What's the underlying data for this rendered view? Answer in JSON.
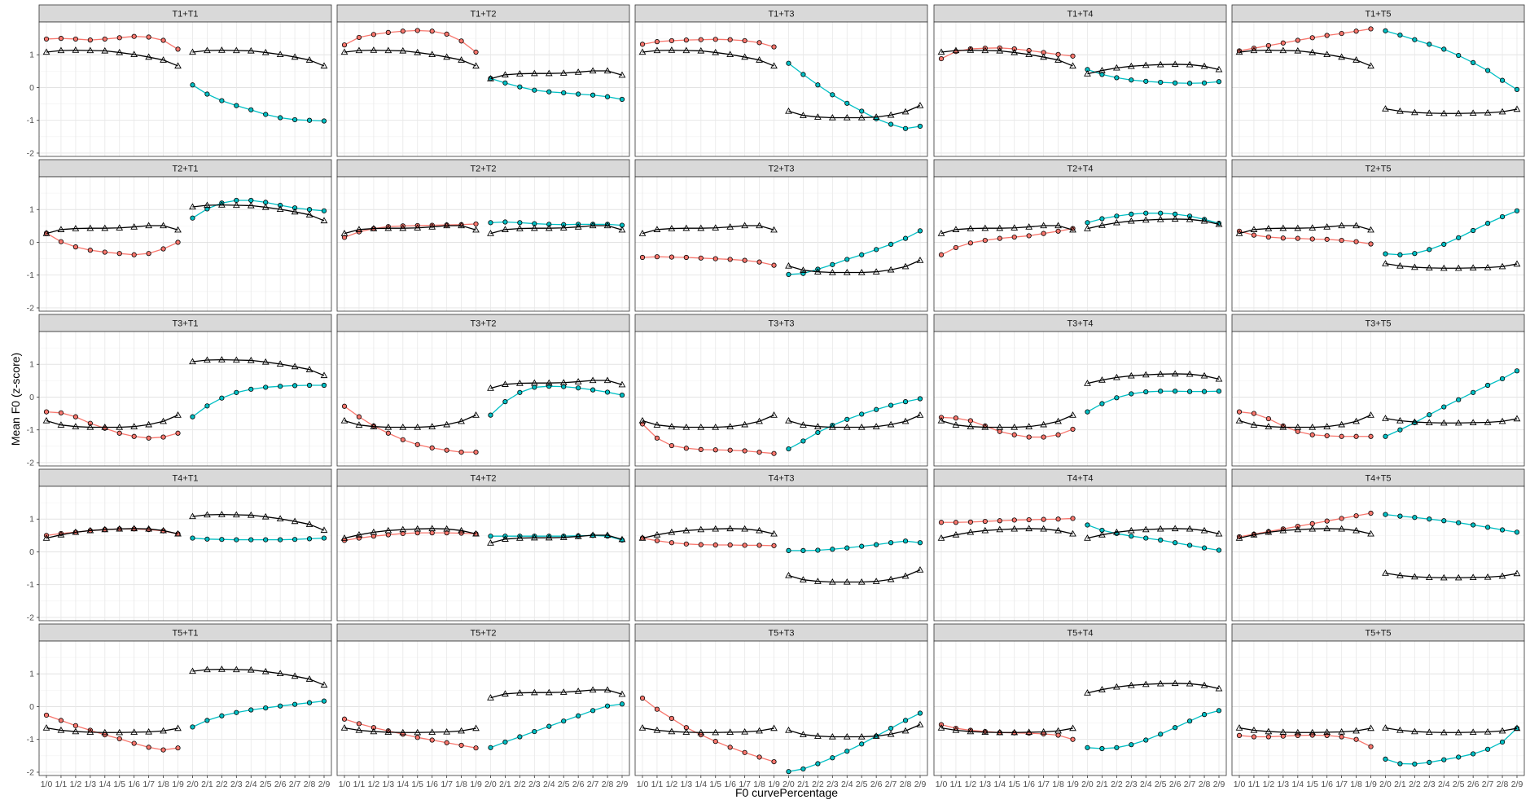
{
  "chart_data": {
    "type": "line",
    "xlabel": "F0 curvePercentage",
    "ylabel": "Mean F0 (z-score)",
    "ylim": [
      -2.1,
      2.0
    ],
    "yticks": [
      -2,
      -1,
      0,
      1
    ],
    "grid": true,
    "legend": "none",
    "x_categories": [
      "1/0",
      "1/1",
      "1/2",
      "1/3",
      "1/4",
      "1/5",
      "1/6",
      "1/7",
      "1/8",
      "1/9",
      "2/0",
      "2/1",
      "2/2",
      "2/3",
      "2/4",
      "2/5",
      "2/6",
      "2/7",
      "2/8",
      "2/9"
    ],
    "colors": {
      "first": "#F8766D",
      "second": "#00BFC4",
      "ref": "#000000",
      "strip": "#d9d9d9"
    },
    "references": {
      "T1": [
        1.08,
        1.13,
        1.14,
        1.13,
        1.12,
        1.07,
        1.01,
        0.93,
        0.84,
        0.66
      ],
      "T2": [
        0.27,
        0.39,
        0.42,
        0.43,
        0.43,
        0.44,
        0.47,
        0.51,
        0.51,
        0.38
      ],
      "T3": [
        -0.72,
        -0.85,
        -0.9,
        -0.92,
        -0.92,
        -0.92,
        -0.9,
        -0.84,
        -0.74,
        -0.55
      ],
      "T4": [
        0.42,
        0.52,
        0.6,
        0.65,
        0.68,
        0.7,
        0.71,
        0.7,
        0.65,
        0.55
      ],
      "T5": [
        -0.65,
        -0.72,
        -0.76,
        -0.78,
        -0.79,
        -0.79,
        -0.78,
        -0.77,
        -0.74,
        -0.66
      ]
    },
    "panels": [
      {
        "title": "T1+T1",
        "first": [
          1.48,
          1.5,
          1.48,
          1.45,
          1.48,
          1.52,
          1.56,
          1.54,
          1.44,
          1.17
        ],
        "second": [
          0.08,
          -0.2,
          -0.4,
          -0.55,
          -0.68,
          -0.82,
          -0.92,
          -0.98,
          -1.0,
          -1.02
        ]
      },
      {
        "title": "T1+T2",
        "first": [
          1.3,
          1.53,
          1.62,
          1.68,
          1.72,
          1.74,
          1.72,
          1.63,
          1.42,
          1.08
        ],
        "second": [
          0.28,
          0.14,
          0.02,
          -0.08,
          -0.13,
          -0.16,
          -0.2,
          -0.23,
          -0.28,
          -0.36
        ]
      },
      {
        "title": "T1+T3",
        "first": [
          1.32,
          1.4,
          1.43,
          1.45,
          1.46,
          1.47,
          1.46,
          1.43,
          1.37,
          1.24
        ],
        "second": [
          0.74,
          0.4,
          0.08,
          -0.22,
          -0.48,
          -0.72,
          -0.95,
          -1.12,
          -1.25,
          -1.18
        ]
      },
      {
        "title": "T1+T4",
        "first": [
          0.88,
          1.1,
          1.18,
          1.2,
          1.21,
          1.18,
          1.13,
          1.07,
          1.01,
          0.96
        ],
        "second": [
          0.55,
          0.4,
          0.3,
          0.23,
          0.19,
          0.16,
          0.14,
          0.13,
          0.14,
          0.18
        ]
      },
      {
        "title": "T1+T5",
        "first": [
          1.12,
          1.2,
          1.28,
          1.36,
          1.44,
          1.52,
          1.59,
          1.65,
          1.72,
          1.79
        ],
        "second": [
          1.73,
          1.6,
          1.46,
          1.32,
          1.17,
          0.98,
          0.76,
          0.52,
          0.22,
          -0.06
        ]
      },
      {
        "title": "T2+T1",
        "first": [
          0.28,
          0.02,
          -0.14,
          -0.24,
          -0.3,
          -0.34,
          -0.38,
          -0.34,
          -0.2,
          0.0
        ],
        "second": [
          0.74,
          1.02,
          1.2,
          1.28,
          1.28,
          1.22,
          1.13,
          1.05,
          1.0,
          0.96
        ]
      },
      {
        "title": "T2+T2",
        "first": [
          0.15,
          0.32,
          0.42,
          0.48,
          0.5,
          0.51,
          0.52,
          0.53,
          0.54,
          0.56
        ],
        "second": [
          0.6,
          0.62,
          0.6,
          0.57,
          0.55,
          0.54,
          0.55,
          0.55,
          0.55,
          0.52
        ]
      },
      {
        "title": "T2+T3",
        "first": [
          -0.46,
          -0.44,
          -0.45,
          -0.46,
          -0.48,
          -0.5,
          -0.52,
          -0.55,
          -0.6,
          -0.7
        ],
        "second": [
          -0.98,
          -0.95,
          -0.82,
          -0.68,
          -0.52,
          -0.38,
          -0.22,
          -0.06,
          0.12,
          0.35
        ]
      },
      {
        "title": "T2+T4",
        "first": [
          -0.38,
          -0.16,
          -0.02,
          0.06,
          0.12,
          0.16,
          0.2,
          0.27,
          0.34,
          0.42
        ],
        "second": [
          0.6,
          0.72,
          0.8,
          0.86,
          0.89,
          0.89,
          0.86,
          0.8,
          0.7,
          0.58
        ]
      },
      {
        "title": "T2+T5",
        "first": [
          0.34,
          0.22,
          0.16,
          0.13,
          0.12,
          0.1,
          0.09,
          0.06,
          0.02,
          -0.05
        ],
        "second": [
          -0.35,
          -0.38,
          -0.34,
          -0.22,
          -0.06,
          0.14,
          0.36,
          0.58,
          0.78,
          0.96
        ]
      },
      {
        "title": "T3+T1",
        "first": [
          -0.45,
          -0.48,
          -0.6,
          -0.8,
          -0.95,
          -1.1,
          -1.2,
          -1.25,
          -1.22,
          -1.1
        ],
        "second": [
          -0.6,
          -0.27,
          -0.03,
          0.14,
          0.24,
          0.3,
          0.33,
          0.35,
          0.36,
          0.36
        ]
      },
      {
        "title": "T3+T2",
        "first": [
          -0.28,
          -0.6,
          -0.88,
          -1.1,
          -1.3,
          -1.45,
          -1.55,
          -1.62,
          -1.68,
          -1.68
        ],
        "second": [
          -0.55,
          -0.14,
          0.14,
          0.3,
          0.33,
          0.32,
          0.28,
          0.22,
          0.15,
          0.06
        ]
      },
      {
        "title": "T3+T3",
        "first": [
          -0.82,
          -1.25,
          -1.48,
          -1.56,
          -1.6,
          -1.61,
          -1.62,
          -1.64,
          -1.68,
          -1.72
        ],
        "second": [
          -1.58,
          -1.34,
          -1.08,
          -0.86,
          -0.68,
          -0.52,
          -0.38,
          -0.25,
          -0.14,
          -0.05
        ]
      },
      {
        "title": "T3+T4",
        "first": [
          -0.62,
          -0.64,
          -0.72,
          -0.88,
          -1.05,
          -1.15,
          -1.22,
          -1.22,
          -1.15,
          -0.98
        ],
        "second": [
          -0.45,
          -0.2,
          -0.02,
          0.1,
          0.16,
          0.18,
          0.18,
          0.17,
          0.17,
          0.18
        ]
      },
      {
        "title": "T3+T5",
        "first": [
          -0.45,
          -0.5,
          -0.66,
          -0.88,
          -1.05,
          -1.15,
          -1.18,
          -1.2,
          -1.2,
          -1.2
        ],
        "second": [
          -1.2,
          -1.0,
          -0.78,
          -0.54,
          -0.3,
          -0.08,
          0.14,
          0.36,
          0.56,
          0.8
        ]
      },
      {
        "title": "T4+T1",
        "first": [
          0.5,
          0.56,
          0.6,
          0.65,
          0.68,
          0.7,
          0.7,
          0.68,
          0.64,
          0.55
        ],
        "second": [
          0.42,
          0.39,
          0.38,
          0.37,
          0.37,
          0.37,
          0.37,
          0.38,
          0.4,
          0.42
        ]
      },
      {
        "title": "T4+T2",
        "first": [
          0.35,
          0.42,
          0.48,
          0.52,
          0.56,
          0.58,
          0.58,
          0.58,
          0.57,
          0.55
        ],
        "second": [
          0.48,
          0.48,
          0.48,
          0.48,
          0.48,
          0.48,
          0.49,
          0.5,
          0.48,
          0.36
        ]
      },
      {
        "title": "T4+T3",
        "first": [
          0.42,
          0.34,
          0.28,
          0.24,
          0.22,
          0.21,
          0.21,
          0.2,
          0.2,
          0.19
        ],
        "second": [
          0.04,
          0.04,
          0.05,
          0.08,
          0.12,
          0.17,
          0.22,
          0.28,
          0.33,
          0.28
        ]
      },
      {
        "title": "T4+T4",
        "first": [
          0.9,
          0.9,
          0.91,
          0.93,
          0.95,
          0.97,
          0.98,
          0.99,
          1.0,
          1.02
        ],
        "second": [
          0.82,
          0.66,
          0.56,
          0.48,
          0.42,
          0.36,
          0.28,
          0.2,
          0.12,
          0.05
        ]
      },
      {
        "title": "T4+T5",
        "first": [
          0.46,
          0.54,
          0.62,
          0.7,
          0.78,
          0.86,
          0.94,
          1.02,
          1.1,
          1.18
        ],
        "second": [
          1.14,
          1.09,
          1.05,
          1.0,
          0.95,
          0.89,
          0.82,
          0.75,
          0.67,
          0.6
        ]
      },
      {
        "title": "T5+T1",
        "first": [
          -0.26,
          -0.42,
          -0.58,
          -0.72,
          -0.86,
          -0.98,
          -1.12,
          -1.24,
          -1.32,
          -1.26
        ],
        "second": [
          -0.62,
          -0.42,
          -0.28,
          -0.18,
          -0.1,
          -0.04,
          0.02,
          0.07,
          0.12,
          0.17
        ]
      },
      {
        "title": "T5+T2",
        "first": [
          -0.38,
          -0.52,
          -0.64,
          -0.74,
          -0.84,
          -0.94,
          -1.02,
          -1.1,
          -1.18,
          -1.26
        ],
        "second": [
          -1.25,
          -1.08,
          -0.92,
          -0.76,
          -0.6,
          -0.44,
          -0.28,
          -0.12,
          0.02,
          0.08
        ]
      },
      {
        "title": "T5+T3",
        "first": [
          0.26,
          -0.08,
          -0.36,
          -0.64,
          -0.86,
          -1.06,
          -1.24,
          -1.4,
          -1.54,
          -1.68
        ],
        "second": [
          -1.98,
          -1.9,
          -1.74,
          -1.56,
          -1.36,
          -1.14,
          -0.9,
          -0.66,
          -0.42,
          -0.2
        ]
      },
      {
        "title": "T5+T4",
        "first": [
          -0.55,
          -0.66,
          -0.72,
          -0.76,
          -0.79,
          -0.8,
          -0.81,
          -0.83,
          -0.87,
          -1.0
        ],
        "second": [
          -1.25,
          -1.28,
          -1.25,
          -1.16,
          -1.02,
          -0.84,
          -0.64,
          -0.44,
          -0.24,
          -0.12
        ]
      },
      {
        "title": "T5+T5",
        "first": [
          -0.88,
          -0.92,
          -0.92,
          -0.9,
          -0.88,
          -0.87,
          -0.88,
          -0.92,
          -1.0,
          -1.22
        ],
        "second": [
          -1.6,
          -1.74,
          -1.75,
          -1.7,
          -1.62,
          -1.54,
          -1.44,
          -1.3,
          -1.08,
          -0.66
        ]
      }
    ]
  }
}
